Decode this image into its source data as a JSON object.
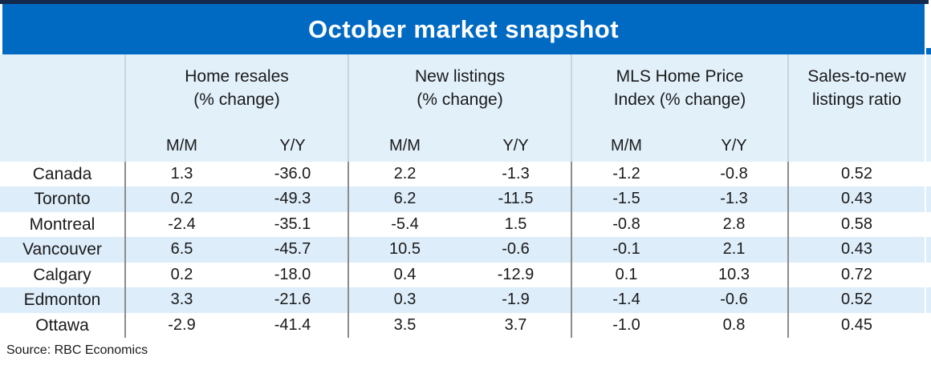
{
  "title": "October market snapshot",
  "source": "Source: RBC Economics",
  "colors": {
    "title_bar_blue": "#006AC3",
    "top_border_navy": "#132A4D",
    "header_band_blue": "#E2F0FA",
    "row_stripe_blue": "#DDEDFA",
    "divider_dark": "#8C8C8C",
    "divider_light": "#C9D6DE",
    "title_text": "#FFFFFF",
    "body_text": "#1A1A1A"
  },
  "header": {
    "groups": [
      {
        "line1": "Home resales",
        "line2": "(% change)"
      },
      {
        "line1": "New listings",
        "line2": "(% change)"
      },
      {
        "line1": "MLS Home Price",
        "line2": "Index (% change)"
      },
      {
        "line1": "Sales-to-new",
        "line2": "listings ratio"
      }
    ],
    "sub_labels": {
      "mm": "M/M",
      "yy": "Y/Y"
    }
  },
  "rows": [
    {
      "name": "Canada",
      "values": [
        "1.3",
        "-36.0",
        "2.2",
        "-1.3",
        "-1.2",
        "-0.8",
        "0.52"
      ]
    },
    {
      "name": "Toronto",
      "values": [
        "0.2",
        "-49.3",
        "6.2",
        "-11.5",
        "-1.5",
        "-1.3",
        "0.43"
      ]
    },
    {
      "name": "Montreal",
      "values": [
        "-2.4",
        "-35.1",
        "-5.4",
        "1.5",
        "-0.8",
        "2.8",
        "0.58"
      ]
    },
    {
      "name": "Vancouver",
      "values": [
        "6.5",
        "-45.7",
        "10.5",
        "-0.6",
        "-0.1",
        "2.1",
        "0.43"
      ]
    },
    {
      "name": "Calgary",
      "values": [
        "0.2",
        "-18.0",
        "0.4",
        "-12.9",
        "0.1",
        "10.3",
        "0.72"
      ]
    },
    {
      "name": "Edmonton",
      "values": [
        "3.3",
        "-21.6",
        "0.3",
        "-1.9",
        "-1.4",
        "-0.6",
        "0.52"
      ]
    },
    {
      "name": "Ottawa",
      "values": [
        "-2.9",
        "-41.4",
        "3.5",
        "3.7",
        "-1.0",
        "0.8",
        "0.45"
      ]
    }
  ],
  "chart_data": {
    "type": "table",
    "title": "October market snapshot",
    "column_groups": [
      "Home resales (% change)",
      "New listings (% change)",
      "MLS Home Price Index (% change)",
      "Sales-to-new listings ratio"
    ],
    "columns": [
      "Home resales M/M",
      "Home resales Y/Y",
      "New listings M/M",
      "New listings Y/Y",
      "MLS HPI M/M",
      "MLS HPI Y/Y",
      "Sales-to-new listings ratio"
    ],
    "row_labels": [
      "Canada",
      "Toronto",
      "Montreal",
      "Vancouver",
      "Calgary",
      "Edmonton",
      "Ottawa"
    ],
    "values": [
      [
        1.3,
        -36.0,
        2.2,
        -1.3,
        -1.2,
        -0.8,
        0.52
      ],
      [
        0.2,
        -49.3,
        6.2,
        -11.5,
        -1.5,
        -1.3,
        0.43
      ],
      [
        -2.4,
        -35.1,
        -5.4,
        1.5,
        -0.8,
        2.8,
        0.58
      ],
      [
        6.5,
        -45.7,
        10.5,
        -0.6,
        -0.1,
        2.1,
        0.43
      ],
      [
        0.2,
        -18.0,
        0.4,
        -12.9,
        0.1,
        10.3,
        0.72
      ],
      [
        3.3,
        -21.6,
        0.3,
        -1.9,
        -1.4,
        -0.6,
        0.52
      ],
      [
        -2.9,
        -41.4,
        3.5,
        3.7,
        -1.0,
        0.8,
        0.45
      ]
    ],
    "source": "RBC Economics"
  }
}
